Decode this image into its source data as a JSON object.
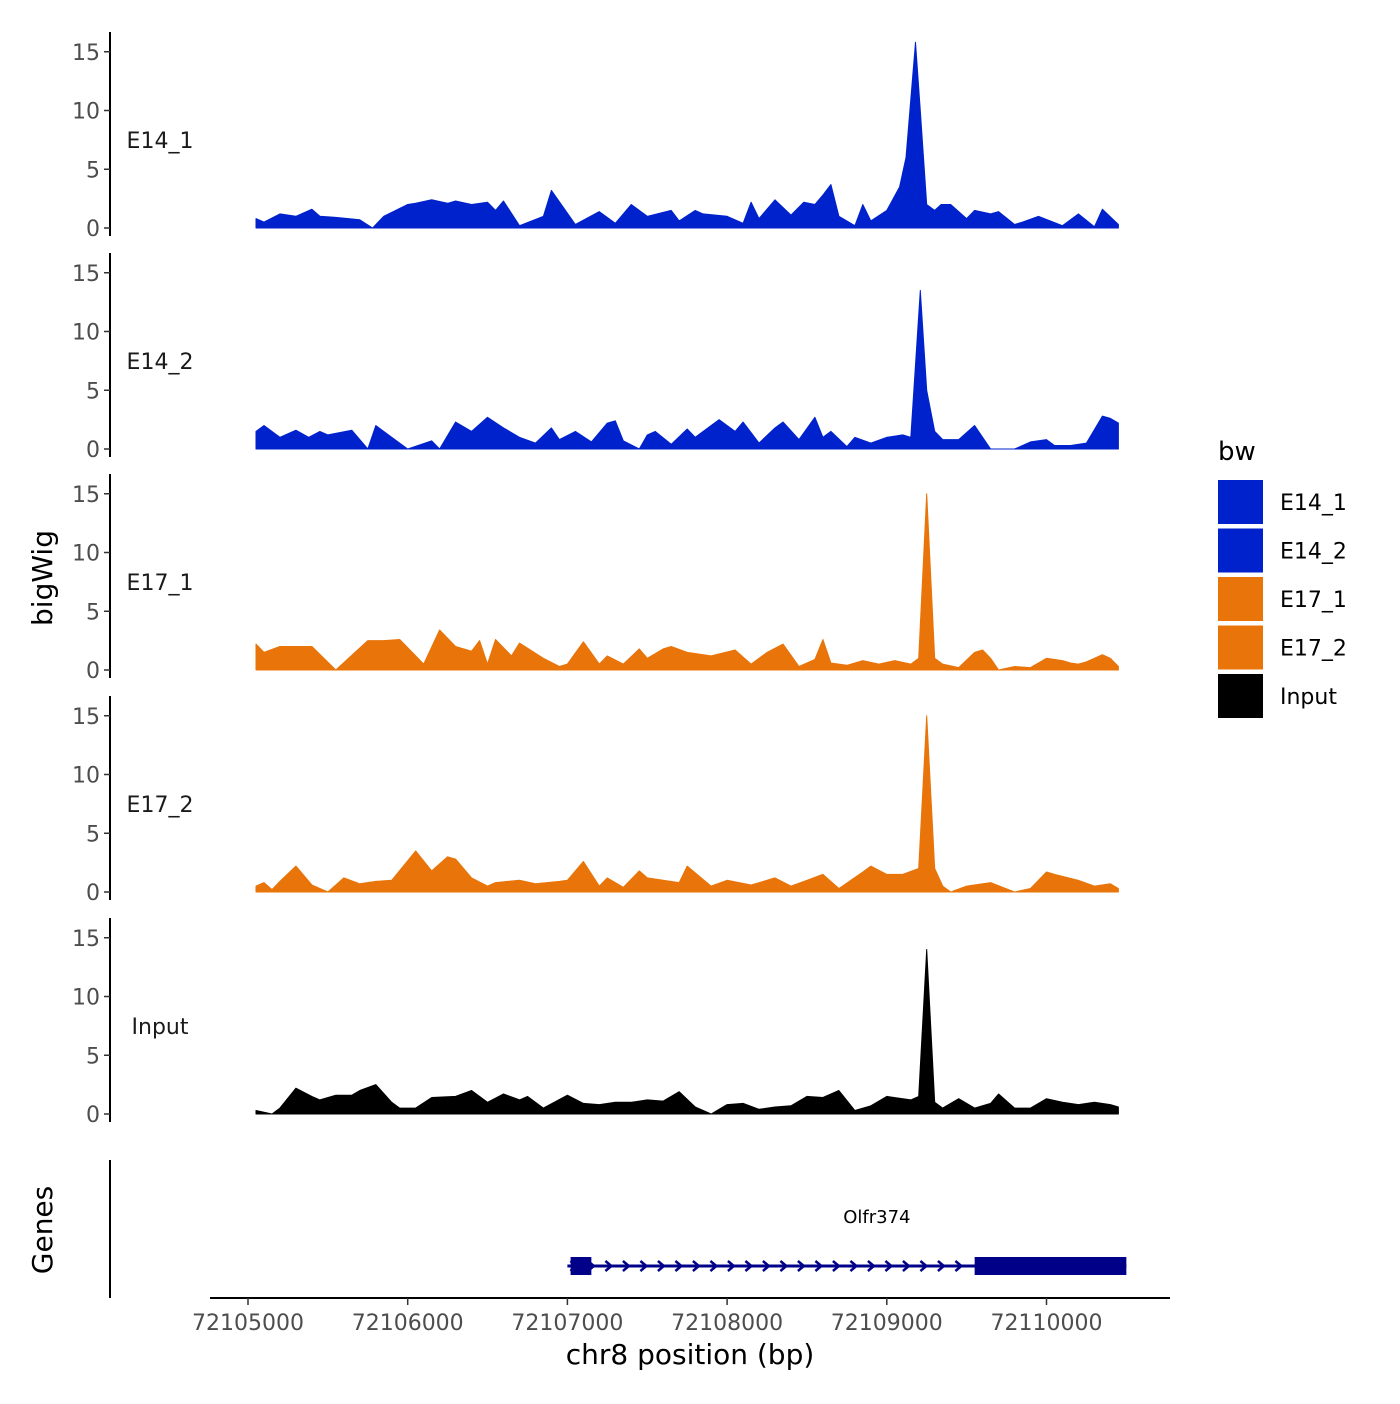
{
  "chart_data": {
    "type": "area",
    "title": "",
    "xlabel": "chr8 position (bp)",
    "ylabel": "bigWig",
    "xlim": [
      72104550,
      72110770
    ],
    "x_ticks": [
      72105000,
      72106000,
      72107000,
      72108000,
      72109000,
      72110000
    ],
    "x_tick_labels": [
      "72105000",
      "72106000",
      "72107000",
      "72108000",
      "72109000",
      "72110000"
    ],
    "ylim": [
      0,
      16
    ],
    "y_ticks": [
      0,
      5,
      10,
      15
    ],
    "y_tick_labels": [
      "0",
      "5",
      "10",
      "15"
    ],
    "legend": {
      "title": "bw",
      "position": "right",
      "entries": [
        {
          "label": "E14_1",
          "color": "#0022cc"
        },
        {
          "label": "E14_2",
          "color": "#0022cc"
        },
        {
          "label": "E17_1",
          "color": "#e8740a"
        },
        {
          "label": "E17_2",
          "color": "#e8740a"
        },
        {
          "label": "Input",
          "color": "#000000"
        }
      ]
    },
    "series": [
      {
        "name": "E14_1",
        "color": "#0022cc",
        "x": [
          72105050,
          72105100,
          72105200,
          72105300,
          72105400,
          72105450,
          72105550,
          72105700,
          72105780,
          72105850,
          72106000,
          72106050,
          72106150,
          72106250,
          72106300,
          72106400,
          72106500,
          72106550,
          72106600,
          72106700,
          72106850,
          72106900,
          72107050,
          72107200,
          72107300,
          72107400,
          72107500,
          72107650,
          72107700,
          72107800,
          72107850,
          72108000,
          72108100,
          72108150,
          72108200,
          72108300,
          72108400,
          72108480,
          72108550,
          72108600,
          72108650,
          72108700,
          72108800,
          72108850,
          72108900,
          72109000,
          72109080,
          72109120,
          72109180,
          72109210,
          72109250,
          72109300,
          72109340,
          72109400,
          72109500,
          72109550,
          72109650,
          72109700,
          72109800,
          72109850,
          72109950,
          72110100,
          72110200,
          72110300,
          72110350,
          72110450
        ],
        "y": [
          0.8,
          0.5,
          1.2,
          1.0,
          1.6,
          1.0,
          0.9,
          0.7,
          0.0,
          1.0,
          2.0,
          2.1,
          2.4,
          2.1,
          2.3,
          2.0,
          2.2,
          1.5,
          2.3,
          0.2,
          1.0,
          3.2,
          0.3,
          1.4,
          0.4,
          2.0,
          1.0,
          1.5,
          0.6,
          1.5,
          1.2,
          1.0,
          0.4,
          2.2,
          0.8,
          2.4,
          1.1,
          2.2,
          2.0,
          2.8,
          3.7,
          1.0,
          0.2,
          2.0,
          0.6,
          1.5,
          3.5,
          6.0,
          15.8,
          10.0,
          2.0,
          1.5,
          2.0,
          2.0,
          0.8,
          1.5,
          1.2,
          1.4,
          0.3,
          0.5,
          1.0,
          0.2,
          1.2,
          0.1,
          1.6,
          0.3
        ]
      },
      {
        "name": "E14_2",
        "color": "#0022cc",
        "x": [
          72105050,
          72105100,
          72105200,
          72105300,
          72105380,
          72105450,
          72105500,
          72105650,
          72105750,
          72105800,
          72105850,
          72106000,
          72106150,
          72106200,
          72106300,
          72106400,
          72106500,
          72106600,
          72106700,
          72106800,
          72106900,
          72106950,
          72107050,
          72107150,
          72107250,
          72107300,
          72107350,
          72107450,
          72107500,
          72107550,
          72107650,
          72107750,
          72107800,
          72107950,
          72108050,
          72108100,
          72108200,
          72108300,
          72108350,
          72108450,
          72108550,
          72108600,
          72108650,
          72108750,
          72108800,
          72108900,
          72109000,
          72109100,
          72109150,
          72109210,
          72109250,
          72109300,
          72109350,
          72109450,
          72109550,
          72109650,
          72109800,
          72109900,
          72110000,
          72110050,
          72110150,
          72110250,
          72110350,
          72110400,
          72110450
        ],
        "y": [
          1.5,
          2.0,
          1.0,
          1.6,
          1.0,
          1.5,
          1.2,
          1.6,
          0.0,
          2.0,
          1.5,
          0.0,
          0.7,
          0.0,
          2.3,
          1.5,
          2.7,
          1.8,
          1.0,
          0.5,
          1.8,
          0.8,
          1.5,
          0.6,
          2.2,
          2.4,
          0.7,
          0.0,
          1.2,
          1.5,
          0.4,
          1.7,
          1.0,
          2.5,
          1.5,
          2.3,
          0.5,
          1.8,
          2.3,
          0.8,
          2.7,
          1.0,
          1.5,
          0.2,
          1.0,
          0.5,
          1.0,
          1.2,
          1.0,
          13.5,
          5.0,
          1.5,
          0.8,
          0.8,
          2.0,
          0.0,
          0.0,
          0.6,
          0.8,
          0.3,
          0.3,
          0.5,
          2.8,
          2.6,
          2.2
        ]
      },
      {
        "name": "E17_1",
        "color": "#e8740a",
        "x": [
          72105050,
          72105100,
          72105200,
          72105300,
          72105400,
          72105550,
          72105750,
          72105850,
          72105950,
          72106100,
          72106200,
          72106300,
          72106400,
          72106450,
          72106500,
          72106550,
          72106650,
          72106700,
          72106850,
          72106950,
          72107000,
          72107100,
          72107200,
          72107250,
          72107350,
          72107450,
          72107500,
          72107600,
          72107650,
          72107750,
          72107900,
          72108050,
          72108150,
          72108250,
          72108350,
          72108450,
          72108550,
          72108600,
          72108650,
          72108750,
          72108850,
          72108950,
          72109050,
          72109150,
          72109200,
          72109250,
          72109300,
          72109350,
          72109450,
          72109550,
          72109600,
          72109650,
          72109700,
          72109800,
          72109900,
          72110000,
          72110100,
          72110150,
          72110200,
          72110250,
          72110350,
          72110400,
          72110450
        ],
        "y": [
          2.2,
          1.5,
          2.0,
          2.0,
          2.0,
          0.0,
          2.5,
          2.5,
          2.6,
          0.5,
          3.4,
          2.0,
          1.6,
          2.5,
          0.5,
          2.6,
          1.2,
          2.3,
          1.0,
          0.3,
          0.5,
          2.4,
          0.5,
          1.2,
          0.5,
          1.8,
          1.0,
          1.8,
          2.0,
          1.5,
          1.2,
          1.7,
          0.5,
          1.5,
          2.2,
          0.3,
          0.9,
          2.6,
          0.6,
          0.4,
          0.8,
          0.5,
          0.8,
          0.5,
          1.0,
          15.0,
          1.0,
          0.5,
          0.2,
          1.5,
          1.7,
          1.0,
          0.0,
          0.3,
          0.2,
          1.0,
          0.8,
          0.6,
          0.5,
          0.7,
          1.3,
          1.0,
          0.3
        ]
      },
      {
        "name": "E17_2",
        "color": "#e8740a",
        "x": [
          72105050,
          72105100,
          72105150,
          72105200,
          72105300,
          72105400,
          72105500,
          72105600,
          72105700,
          72105800,
          72105900,
          72106050,
          72106150,
          72106250,
          72106300,
          72106400,
          72106500,
          72106550,
          72106700,
          72106800,
          72106950,
          72107000,
          72107100,
          72107200,
          72107250,
          72107350,
          72107450,
          72107500,
          72107600,
          72107700,
          72107750,
          72107900,
          72108000,
          72108150,
          72108300,
          72108400,
          72108500,
          72108600,
          72108700,
          72108850,
          72108900,
          72109000,
          72109100,
          72109200,
          72109250,
          72109300,
          72109350,
          72109400,
          72109500,
          72109650,
          72109800,
          72109900,
          72110000,
          72110050,
          72110200,
          72110300,
          72110400,
          72110450
        ],
        "y": [
          0.5,
          0.8,
          0.2,
          0.9,
          2.2,
          0.6,
          0.0,
          1.2,
          0.7,
          0.9,
          1.0,
          3.5,
          1.8,
          3.0,
          2.8,
          1.2,
          0.5,
          0.8,
          1.0,
          0.7,
          0.9,
          1.0,
          2.6,
          0.5,
          1.2,
          0.4,
          1.8,
          1.2,
          1.0,
          0.8,
          2.2,
          0.5,
          1.0,
          0.6,
          1.2,
          0.5,
          1.0,
          1.5,
          0.3,
          1.7,
          2.2,
          1.5,
          1.5,
          2.0,
          15.0,
          2.0,
          0.5,
          0.0,
          0.5,
          0.8,
          0.0,
          0.3,
          1.7,
          1.5,
          1.0,
          0.5,
          0.7,
          0.3
        ]
      },
      {
        "name": "Input",
        "color": "#000000",
        "x": [
          72105050,
          72105150,
          72105200,
          72105300,
          72105400,
          72105450,
          72105550,
          72105650,
          72105700,
          72105800,
          72105900,
          72105950,
          72106050,
          72106150,
          72106300,
          72106400,
          72106500,
          72106600,
          72106700,
          72106750,
          72106850,
          72107000,
          72107100,
          72107200,
          72107300,
          72107400,
          72107500,
          72107600,
          72107700,
          72107800,
          72107900,
          72108000,
          72108100,
          72108200,
          72108300,
          72108400,
          72108500,
          72108600,
          72108700,
          72108800,
          72108900,
          72109000,
          72109150,
          72109200,
          72109250,
          72109300,
          72109350,
          72109450,
          72109550,
          72109650,
          72109700,
          72109800,
          72109900,
          72110000,
          72110100,
          72110200,
          72110300,
          72110400,
          72110450
        ],
        "y": [
          0.3,
          0.0,
          0.5,
          2.2,
          1.5,
          1.2,
          1.6,
          1.6,
          2.0,
          2.5,
          1.0,
          0.5,
          0.5,
          1.4,
          1.5,
          2.0,
          1.0,
          1.7,
          1.2,
          1.5,
          0.5,
          1.6,
          0.9,
          0.8,
          1.0,
          1.0,
          1.2,
          1.1,
          1.9,
          0.6,
          0.0,
          0.8,
          0.9,
          0.4,
          0.6,
          0.7,
          1.5,
          1.4,
          2.0,
          0.3,
          0.7,
          1.5,
          1.2,
          1.5,
          14.0,
          1.0,
          0.5,
          1.3,
          0.5,
          0.9,
          1.7,
          0.5,
          0.5,
          1.3,
          1.0,
          0.8,
          1.0,
          0.8,
          0.6
        ]
      }
    ],
    "genes": {
      "track_label": "Genes",
      "gene_name": "Olfr374",
      "start": 72107000,
      "end": 72110500,
      "strand": "+",
      "exons": [
        [
          72107020,
          72107150
        ],
        [
          72109550,
          72110500
        ]
      ],
      "color": "#000088"
    }
  }
}
